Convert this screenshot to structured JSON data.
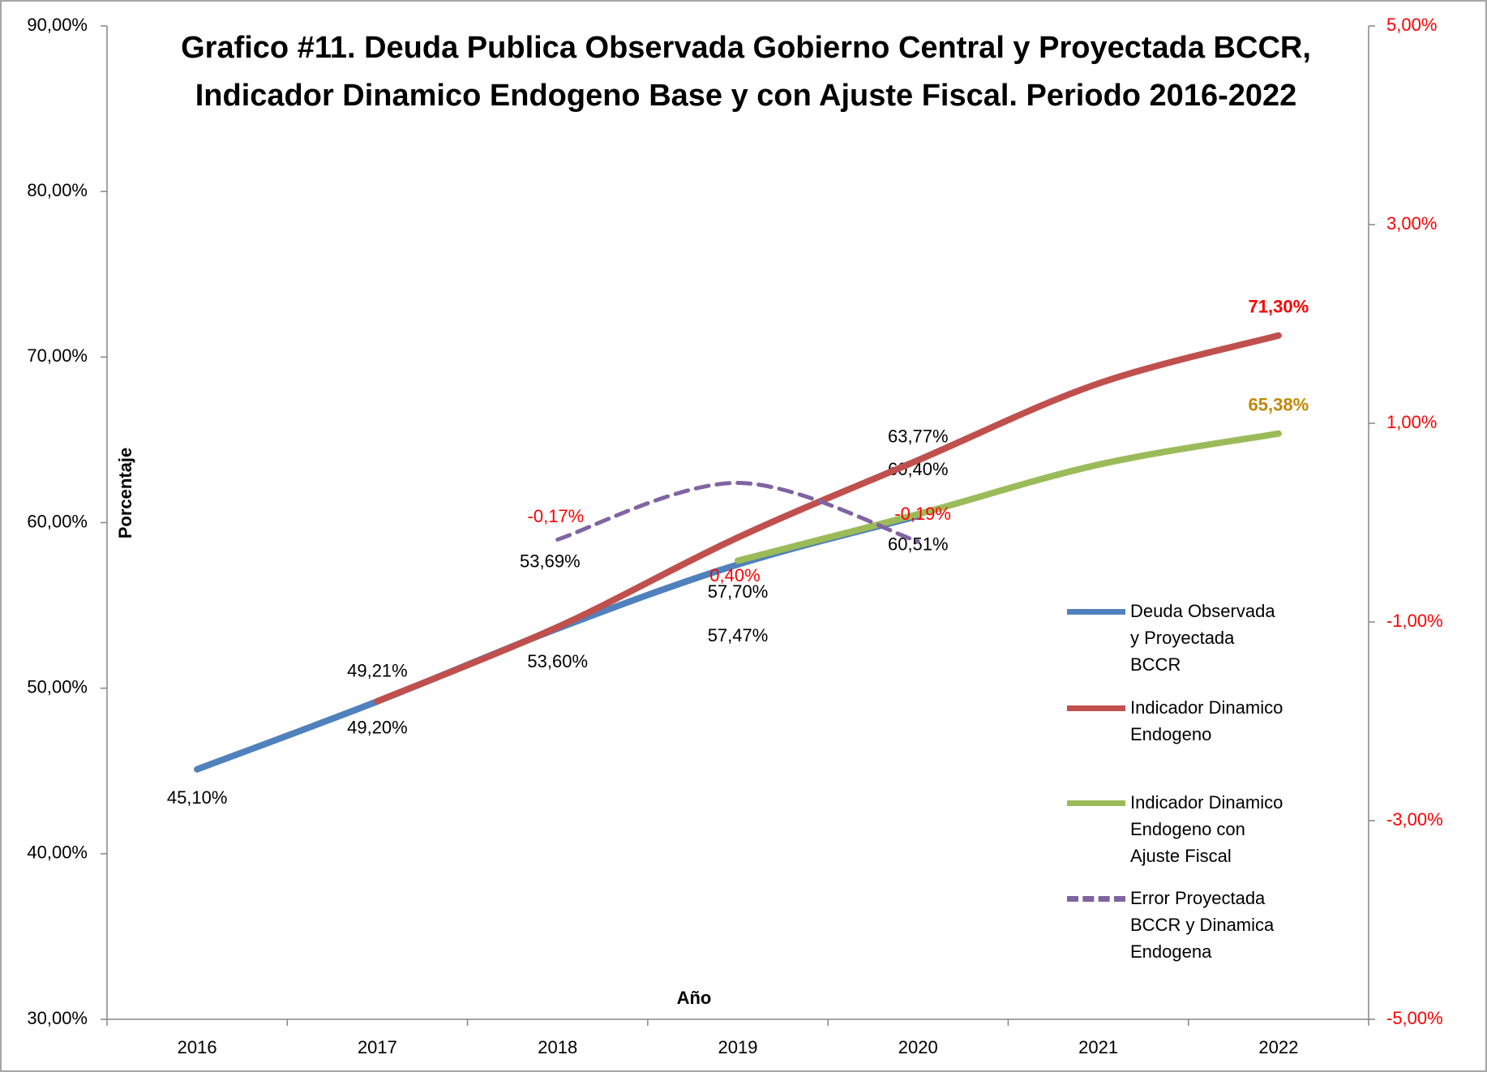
{
  "chart_data": {
    "type": "line",
    "title": "Grafico #11. Deuda Publica Observada Gobierno Central y  Proyectada BCCR, Indicador Dinamico Endogeno Base y con Ajuste Fiscal. Periodo 2016-2022",
    "xlabel": "Año",
    "ylabel": "Porcentaje",
    "categories": [
      "2016",
      "2017",
      "2018",
      "2019",
      "2020",
      "2021",
      "2022"
    ],
    "ylim": [
      30,
      90
    ],
    "yticks": [
      {
        "value": 30,
        "label": "30,00%"
      },
      {
        "value": 40,
        "label": "40,00%"
      },
      {
        "value": 50,
        "label": "50,00%"
      },
      {
        "value": 60,
        "label": "60,00%"
      },
      {
        "value": 70,
        "label": "70,00%"
      },
      {
        "value": 80,
        "label": "80,00%"
      },
      {
        "value": 90,
        "label": "90,00%"
      }
    ],
    "y2lim": [
      -5,
      5
    ],
    "y2ticks": [
      {
        "value": -5,
        "label": "-5,00%"
      },
      {
        "value": -3,
        "label": "-3,00%"
      },
      {
        "value": -1,
        "label": "-1,00%"
      },
      {
        "value": 1,
        "label": "1,00%"
      },
      {
        "value": 3,
        "label": "3,00%"
      },
      {
        "value": 5,
        "label": "5,00%"
      }
    ],
    "legend": "right",
    "series": [
      {
        "name": "Deuda Observada y Proyectada BCCR",
        "color": "#4f81bd",
        "values": [
          45.1,
          49.2,
          53.6,
          57.47,
          60.4,
          null,
          null
        ],
        "value_labels": [
          "45,10%",
          "49,20%",
          "53,60%",
          "57,47%",
          "60,40%",
          null,
          null
        ]
      },
      {
        "name": "Indicador Dinamico Endogeno",
        "color": "#c0504d",
        "values": [
          null,
          49.21,
          53.69,
          59.1,
          63.77,
          68.4,
          71.3
        ],
        "value_labels": [
          null,
          "49,21%",
          "53,69%",
          null,
          "63,77%",
          null,
          "71,30%"
        ]
      },
      {
        "name": "Indicador Dinamico Endogeno con Ajuste Fiscal",
        "color": "#9bbb59",
        "values": [
          null,
          null,
          null,
          57.7,
          60.51,
          63.5,
          65.38
        ],
        "value_labels": [
          null,
          null,
          null,
          "57,70%",
          "60,51%",
          null,
          "65,38%"
        ]
      },
      {
        "name": "Error Proyectada BCCR y Dinamica Endogena",
        "color": "#8064a2",
        "axis": "y2",
        "dashed": true,
        "values": [
          null,
          null,
          -0.17,
          0.4,
          -0.19,
          null,
          null
        ],
        "value_labels": [
          null,
          null,
          "-0,17%",
          "0,40%",
          "-0,19%",
          null,
          null
        ]
      }
    ]
  }
}
